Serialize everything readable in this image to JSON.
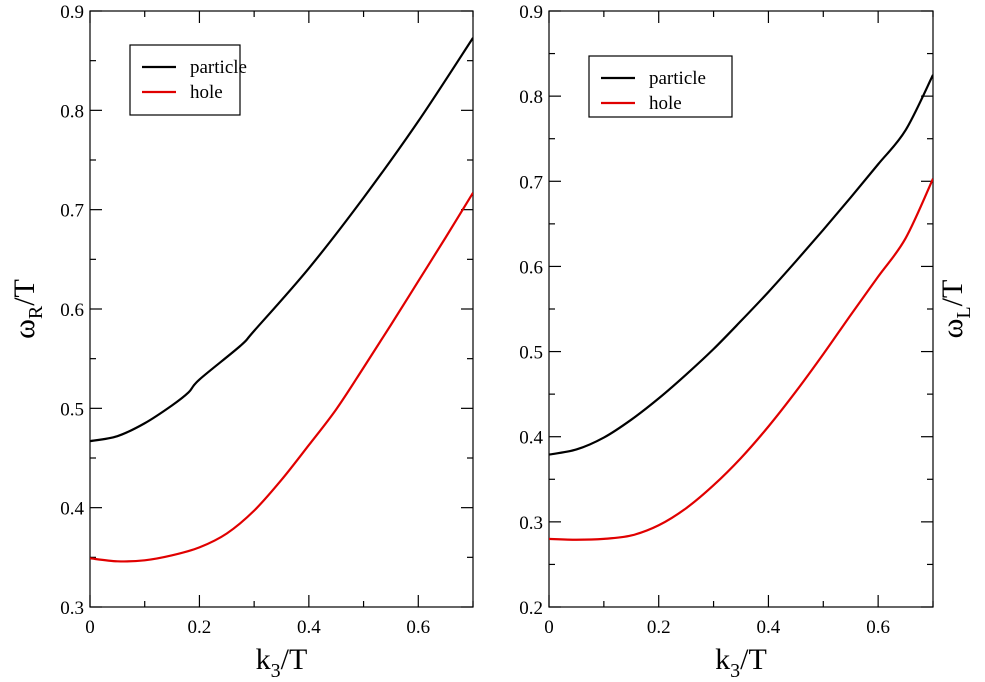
{
  "chart_data": [
    {
      "type": "line",
      "panel": "left",
      "xlabel": "k3/T",
      "ylabel": "ωR/T",
      "xlabel_main": "k",
      "xlabel_sub": "3",
      "xlabel_rest": "/T",
      "ylabel_main": "ω",
      "ylabel_sub": "R",
      "ylabel_rest": "/T",
      "xlim": [
        0,
        0.7
      ],
      "ylim": [
        0.3,
        0.9
      ],
      "xticks": [
        0,
        0.2,
        0.4,
        0.6
      ],
      "xtick_labels": [
        "0",
        "0.2",
        "0.4",
        "0.6"
      ],
      "yticks": [
        0.3,
        0.4,
        0.5,
        0.6,
        0.7,
        0.8,
        0.9
      ],
      "ytick_labels": [
        "0.3",
        "0.4",
        "0.5",
        "0.6",
        "0.7",
        "0.8",
        "0.9"
      ],
      "legend_position": "top-left",
      "series": [
        {
          "name": "particle",
          "color": "#000000",
          "x": [
            0,
            0.05,
            0.1,
            0.15,
            0.18,
            0.2,
            0.275,
            0.3,
            0.4,
            0.5,
            0.6,
            0.7
          ],
          "y": [
            0.467,
            0.472,
            0.485,
            0.503,
            0.516,
            0.529,
            0.563,
            0.578,
            0.641,
            0.712,
            0.789,
            0.873
          ]
        },
        {
          "name": "hole",
          "color": "#e00000",
          "x": [
            0,
            0.05,
            0.1,
            0.15,
            0.2,
            0.25,
            0.3,
            0.35,
            0.4,
            0.45,
            0.5,
            0.55,
            0.6,
            0.65,
            0.7
          ],
          "y": [
            0.349,
            0.346,
            0.347,
            0.352,
            0.36,
            0.374,
            0.397,
            0.428,
            0.463,
            0.499,
            0.541,
            0.584,
            0.628,
            0.672,
            0.717
          ]
        }
      ]
    },
    {
      "type": "line",
      "panel": "right",
      "xlabel": "k3/T",
      "ylabel": "ωL/T",
      "xlabel_main": "k",
      "xlabel_sub": "3",
      "xlabel_rest": "/T",
      "ylabel_main": "ω",
      "ylabel_sub": "L",
      "ylabel_rest": "/T",
      "xlim": [
        0,
        0.7
      ],
      "ylim": [
        0.2,
        0.9
      ],
      "xticks": [
        0,
        0.2,
        0.4,
        0.6
      ],
      "xtick_labels": [
        "0",
        "0.2",
        "0.4",
        "0.6"
      ],
      "yticks": [
        0.2,
        0.3,
        0.4,
        0.5,
        0.6,
        0.7,
        0.8,
        0.9
      ],
      "ytick_labels": [
        "0.2",
        "0.3",
        "0.4",
        "0.5",
        "0.6",
        "0.7",
        "0.8",
        "0.9"
      ],
      "legend_position": "top-left",
      "series": [
        {
          "name": "particle",
          "color": "#000000",
          "x": [
            0,
            0.05,
            0.1,
            0.15,
            0.2,
            0.25,
            0.3,
            0.35,
            0.4,
            0.45,
            0.5,
            0.55,
            0.6,
            0.65,
            0.7
          ],
          "y": [
            0.379,
            0.385,
            0.399,
            0.42,
            0.445,
            0.473,
            0.503,
            0.536,
            0.57,
            0.606,
            0.643,
            0.681,
            0.72,
            0.76,
            0.825
          ]
        },
        {
          "name": "hole",
          "color": "#e00000",
          "x": [
            0,
            0.05,
            0.1,
            0.15,
            0.2,
            0.25,
            0.3,
            0.35,
            0.4,
            0.45,
            0.5,
            0.55,
            0.6,
            0.65,
            0.7
          ],
          "y": [
            0.28,
            0.279,
            0.28,
            0.284,
            0.296,
            0.316,
            0.343,
            0.375,
            0.412,
            0.453,
            0.497,
            0.543,
            0.588,
            0.633,
            0.703
          ]
        }
      ]
    }
  ]
}
